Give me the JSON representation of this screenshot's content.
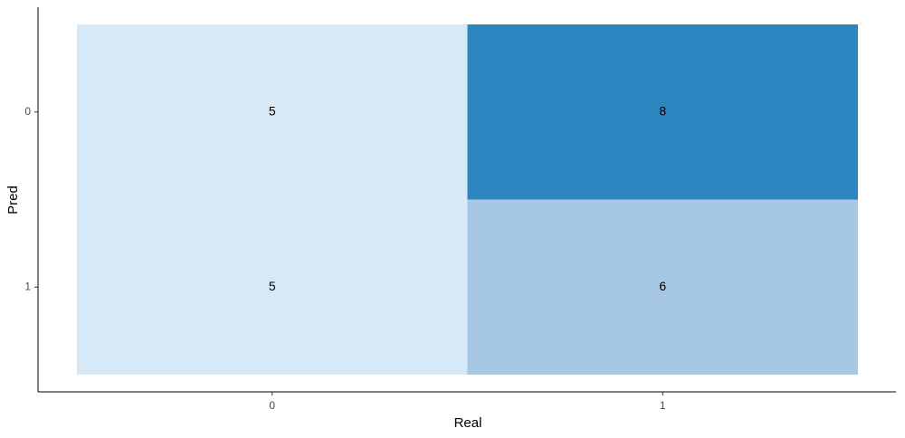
{
  "chart_data": {
    "type": "heatmap",
    "x_label": "Real",
    "y_label": "Pred",
    "x_categories": [
      "0",
      "1"
    ],
    "y_categories": [
      "0",
      "1"
    ],
    "values": [
      [
        5,
        8
      ],
      [
        5,
        6
      ]
    ],
    "colors": [
      [
        "#d7e9f6",
        "#2e86c1"
      ],
      [
        "#d7e9f6",
        "#a7c8e5"
      ]
    ]
  }
}
